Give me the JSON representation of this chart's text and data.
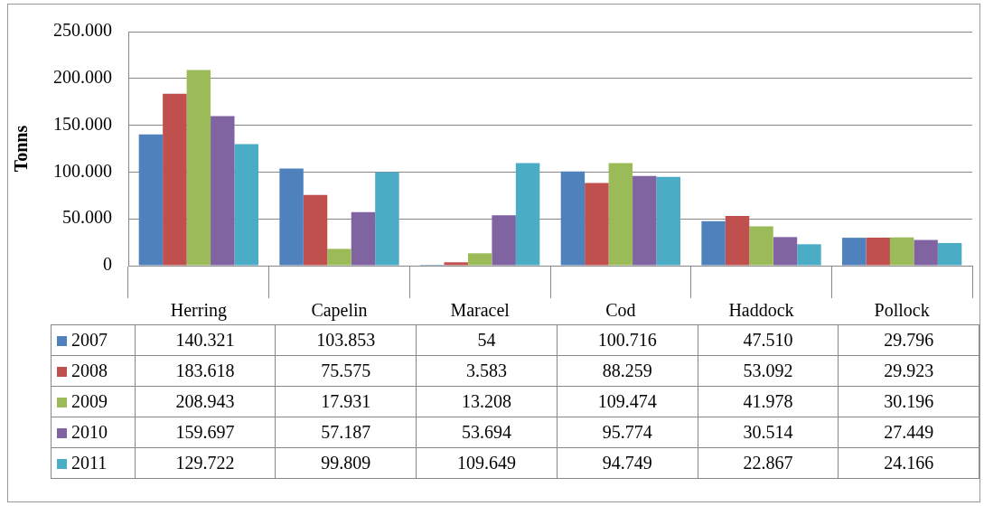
{
  "chart_data": {
    "type": "bar",
    "ylabel": "Tonns",
    "categories": [
      "Herring",
      "Capelin",
      "Maracel",
      "Cod",
      "Haddock",
      "Pollock"
    ],
    "ylim": [
      0,
      250000
    ],
    "yticks": [
      {
        "value": 0,
        "label": "0"
      },
      {
        "value": 50000,
        "label": "50.000"
      },
      {
        "value": 100000,
        "label": "100.000"
      },
      {
        "value": 150000,
        "label": "150.000"
      },
      {
        "value": 200000,
        "label": "200.000"
      },
      {
        "value": 250000,
        "label": "250.000"
      }
    ],
    "grid": "y",
    "legend": "bottom",
    "series": [
      {
        "name": "2007",
        "color": "#4f81bd",
        "values": [
          140321,
          103853,
          54,
          100716,
          47510,
          29796
        ],
        "value_labels": [
          "140.321",
          "103.853",
          "54",
          "100.716",
          "47.510",
          "29.796"
        ]
      },
      {
        "name": "2008",
        "color": "#c0504d",
        "values": [
          183618,
          75575,
          3583,
          88259,
          53092,
          29923
        ],
        "value_labels": [
          "183.618",
          "75.575",
          "3.583",
          "88.259",
          "53.092",
          "29.923"
        ]
      },
      {
        "name": "2009",
        "color": "#9bbb59",
        "values": [
          208943,
          17931,
          13208,
          109474,
          41978,
          30196
        ],
        "value_labels": [
          "208.943",
          "17.931",
          "13.208",
          "109.474",
          "41.978",
          "30.196"
        ]
      },
      {
        "name": "2010",
        "color": "#8064a2",
        "values": [
          159697,
          57187,
          53694,
          95774,
          30514,
          27449
        ],
        "value_labels": [
          "159.697",
          "57.187",
          "53.694",
          "95.774",
          "30.514",
          "27.449"
        ]
      },
      {
        "name": "2011",
        "color": "#4bacc6",
        "values": [
          129722,
          99809,
          109649,
          94749,
          22867,
          24166
        ],
        "value_labels": [
          "129.722",
          "99.809",
          "109.649",
          "94.749",
          "22.867",
          "24.166"
        ]
      }
    ]
  }
}
